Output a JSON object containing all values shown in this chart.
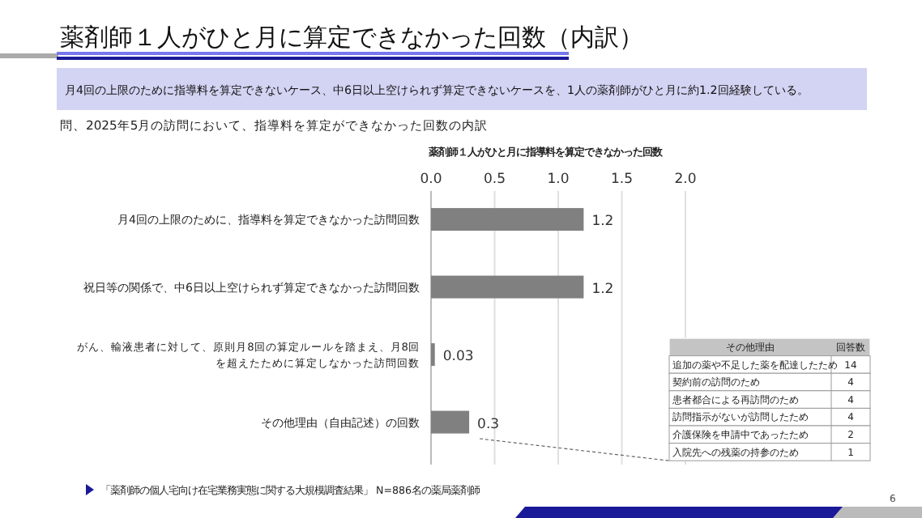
{
  "chart_data": [
    {
      "type": "bar",
      "orientation": "horizontal",
      "title": "薬剤師１人がひと月に算定できなかった回数（内訳）",
      "subtitle": "月4回の上限のために指導料を算定できないケース、中6日以上空けられず算定できないケースを、1人の薬剤師がひと月に約1.2回経験している。",
      "xlabel": "薬剤師１人がひと月に指導料を算定できなかった回数",
      "annotations": [
        "問、2025年5月の訪問において、指導料を算定ができなかった回数の内訳",
        "「薬剤師の個人宅向け在宅業務実態に関する大規模調査結果」 N=886名の薬局薬剤師",
        "6"
      ],
      "categories": [
        "月4回の上限のために、指導料を算定できなかった訪問回数",
        "祝日等の関係で、中6日以上空けられず算定できなかった訪問回数",
        "がん、輸液患者に対して、原則月8回の算定ルールを踏まえ、月8回を超えたために算定しなかった訪問回数",
        "その他理由（自由記述）の回数"
      ],
      "values": [
        1.2,
        1.2,
        0.03,
        0.3
      ],
      "color": "#808080",
      "data_labels": true,
      "xlim": [
        0,
        2.0
      ],
      "xticks": [
        {
          "value": 0,
          "label": "0.0"
        },
        {
          "value": 0.5,
          "label": "0.5"
        },
        {
          "value": 1,
          "label": "1.0"
        },
        {
          "value": 1.5,
          "label": "1.5"
        },
        {
          "value": 2,
          "label": "2.0"
        }
      ],
      "grid": "x"
    },
    {
      "type": "other",
      "title": "その他理由",
      "xlabel": "回答数",
      "categories": [
        "追加の薬や不足した薬を配達したため",
        "契約前の訪問のため",
        "患者都合による再訪問のため",
        "訪問指示がないが訪問したため",
        "介護保険を申請中であったため",
        "入院先への残薬の持参のため"
      ],
      "values": [
        14,
        4,
        4,
        4,
        2,
        1
      ],
      "data_labels": true
    }
  ]
}
